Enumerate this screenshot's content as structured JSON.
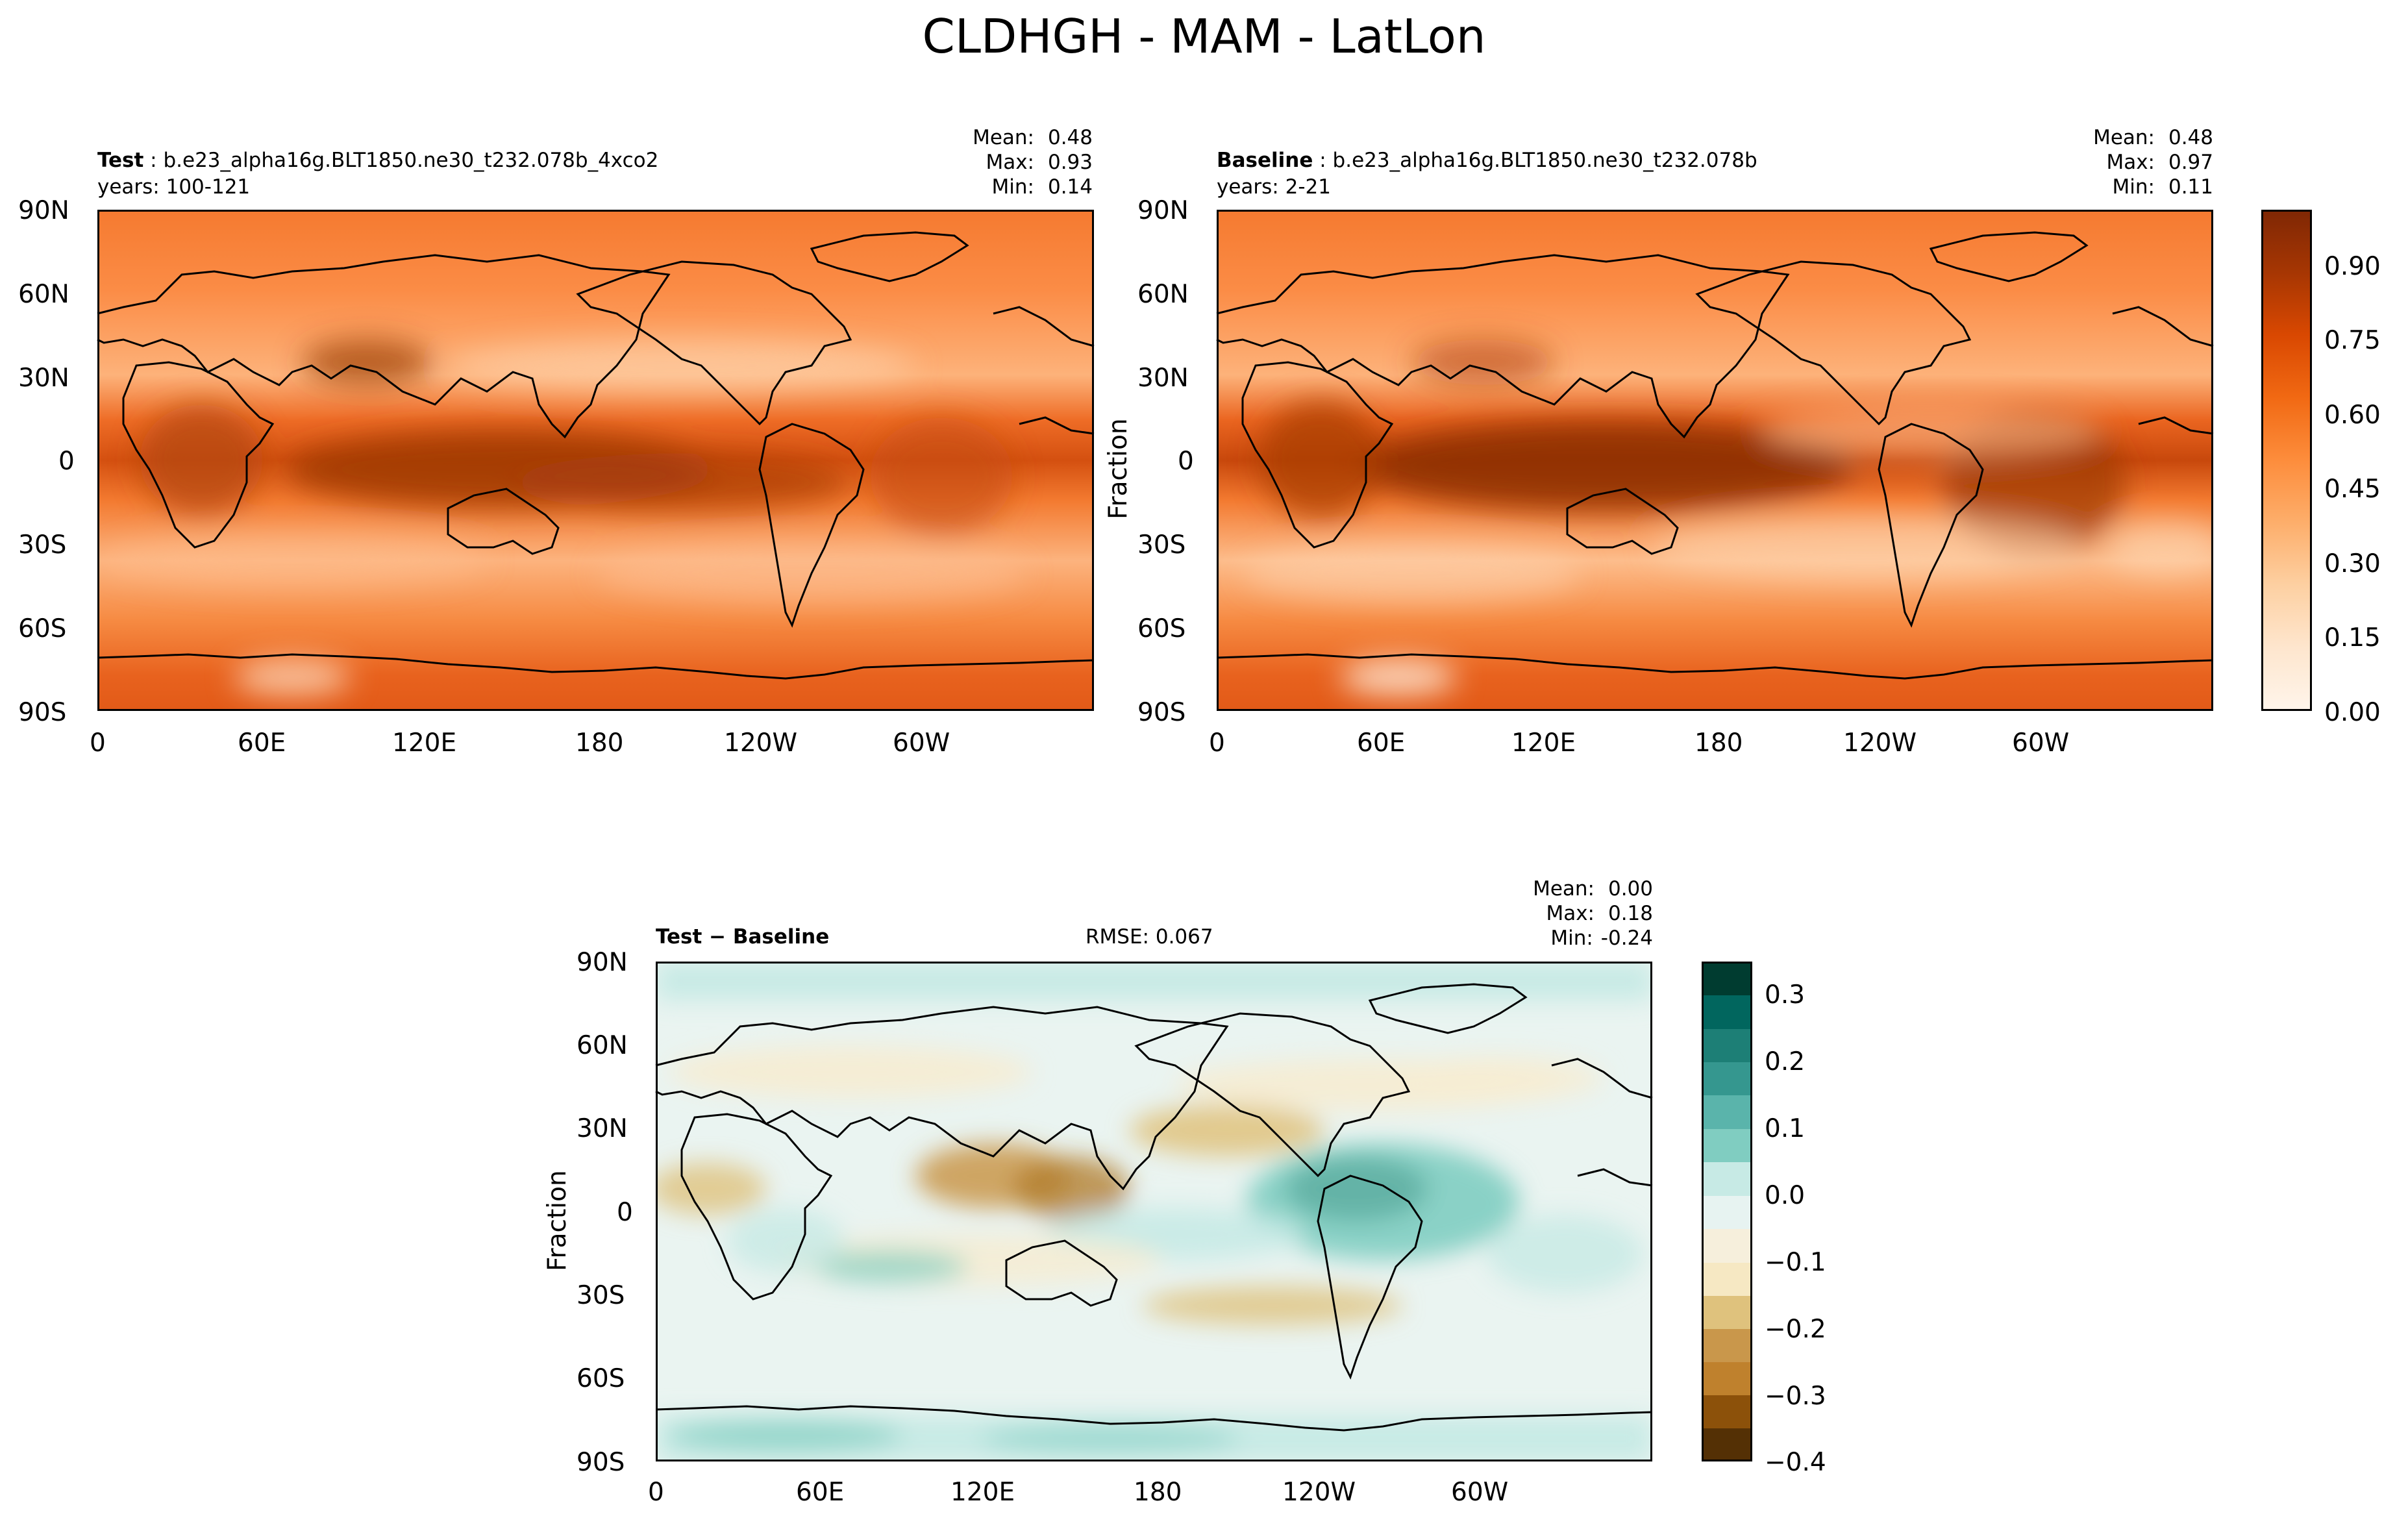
{
  "figure": {
    "title": "CLDHGH - MAM - LatLon"
  },
  "panels": {
    "test": {
      "label_bold": "Test",
      "label_rest": "b.e23_alpha16g.BLT1850.ne30_t232.078b_4xco2",
      "years": "years: 100-121",
      "mean_label": "Mean:",
      "mean": "0.48",
      "max_label": "Max:",
      "max": "0.93",
      "min_label": "Min:",
      "min": "0.14"
    },
    "baseline": {
      "label_bold": "Baseline",
      "label_rest": "b.e23_alpha16g.BLT1850.ne30_t232.078b",
      "years": "years: 2-21",
      "mean_label": "Mean:",
      "mean": "0.48",
      "max_label": "Max:",
      "max": "0.97",
      "min_label": "Min:",
      "min": "0.11",
      "ylabel": "Fraction"
    },
    "diff": {
      "label_bold": "Test − Baseline",
      "rmse": "RMSE: 0.067",
      "mean_label": "Mean:",
      "mean": "0.00",
      "max_label": "Max:",
      "max": "0.18",
      "min_label": "Min:",
      "min": "-0.24",
      "ylabel": "Fraction"
    }
  },
  "axes": {
    "lat_ticks": [
      "90N",
      "60N",
      "30N",
      "0",
      "30S",
      "60S",
      "90S"
    ],
    "lon_ticks": [
      "0",
      "60E",
      "120E",
      "180",
      "120W",
      "60W"
    ]
  },
  "colorbars": {
    "main": {
      "ticks": [
        "0.00",
        "0.15",
        "0.30",
        "0.45",
        "0.60",
        "0.75",
        "0.90"
      ],
      "colormap": [
        "#fff5eb",
        "#fee6ce",
        "#fdd0a2",
        "#fdae6b",
        "#fd8d3c",
        "#f16913",
        "#d94801",
        "#a63603",
        "#7f2704"
      ]
    },
    "diff": {
      "ticks": [
        "0.3",
        "0.2",
        "0.1",
        "0.0",
        "−0.1",
        "−0.2",
        "−0.3",
        "−0.4"
      ],
      "colormap": [
        "#543005",
        "#8c510a",
        "#bf812d",
        "#dfc27d",
        "#f6e8c3",
        "#f5f5f5",
        "#c7eae5",
        "#80cdc1",
        "#35978f",
        "#01665e",
        "#003c30"
      ]
    }
  }
}
